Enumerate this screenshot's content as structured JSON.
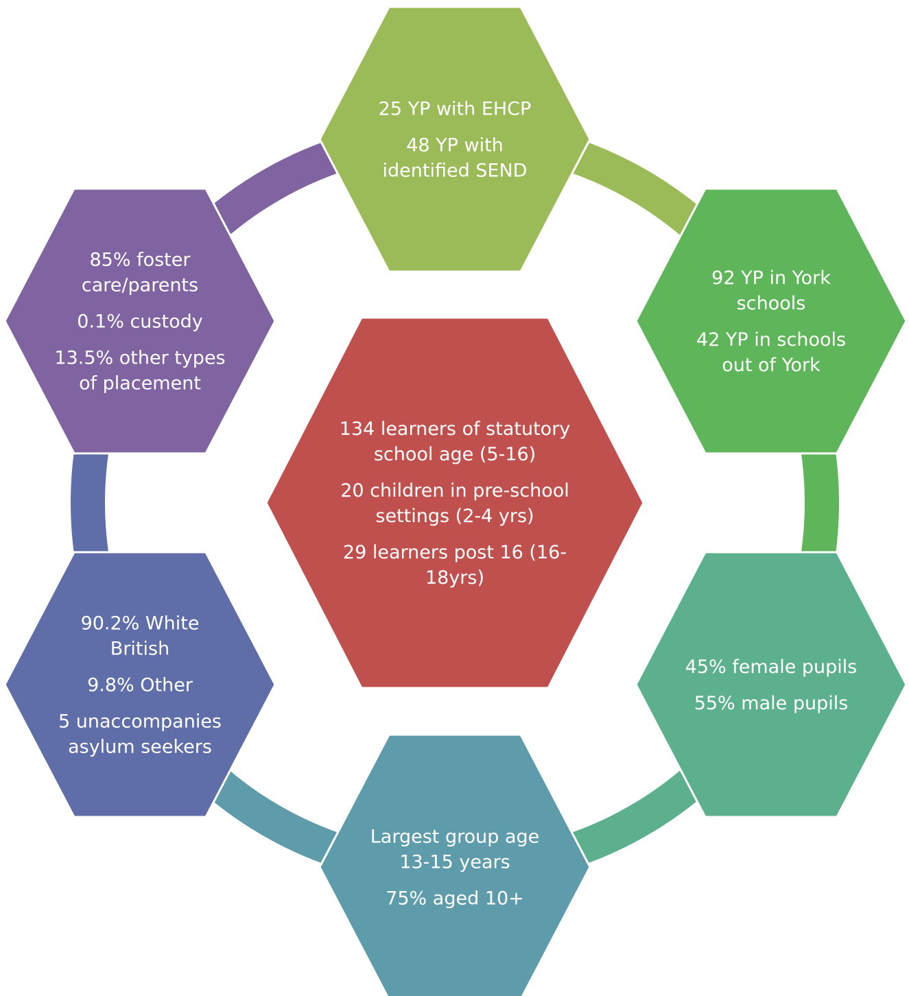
{
  "center": {
    "color": "#c0504d",
    "lines": [
      [
        "134 learners of statutory",
        "school age (5-16)"
      ],
      [
        "20 children in pre-school",
        "settings (2-4 yrs)"
      ],
      [
        "29 learners post 16 (16-",
        "18yrs)"
      ]
    ]
  },
  "nodes": [
    {
      "id": "send",
      "color": "#9bbb59",
      "lines": [
        [
          "25 YP with EHCP"
        ],
        [
          "48 YP with",
          "identified SEND"
        ]
      ]
    },
    {
      "id": "schools",
      "color": "#5fb55a",
      "lines": [
        [
          "92 YP in York",
          "schools"
        ],
        [
          "42 YP in schools",
          "out of York"
        ]
      ]
    },
    {
      "id": "gender",
      "color": "#5cb08e",
      "lines": [
        [
          "45% female pupils"
        ],
        [
          "55% male pupils"
        ]
      ]
    },
    {
      "id": "age",
      "color": "#5f9cab",
      "lines": [
        [
          "Largest group age",
          "13-15 years"
        ],
        [
          "75% aged 10+"
        ]
      ]
    },
    {
      "id": "ethnicity",
      "color": "#5f6ea8",
      "lines": [
        [
          "90.2% White",
          "British"
        ],
        [
          "9.8% Other"
        ],
        [
          "5 unaccompanies",
          "asylum seekers"
        ]
      ]
    },
    {
      "id": "placement",
      "color": "#8064a2",
      "lines": [
        [
          "85% foster",
          "care/parents"
        ],
        [
          "0.1% custody"
        ],
        [
          "13.5% other types",
          "of placement"
        ]
      ]
    }
  ],
  "connectors": [
    {
      "from": "send",
      "to": "schools",
      "color": "#9bbb59"
    },
    {
      "from": "schools",
      "to": "gender",
      "color": "#5fb55a"
    },
    {
      "from": "gender",
      "to": "age",
      "color": "#5cb08e"
    },
    {
      "from": "age",
      "to": "ethnicity",
      "color": "#5f9cab"
    },
    {
      "from": "ethnicity",
      "to": "placement",
      "color": "#5f6ea8"
    },
    {
      "from": "placement",
      "to": "send",
      "color": "#8064a2"
    }
  ]
}
